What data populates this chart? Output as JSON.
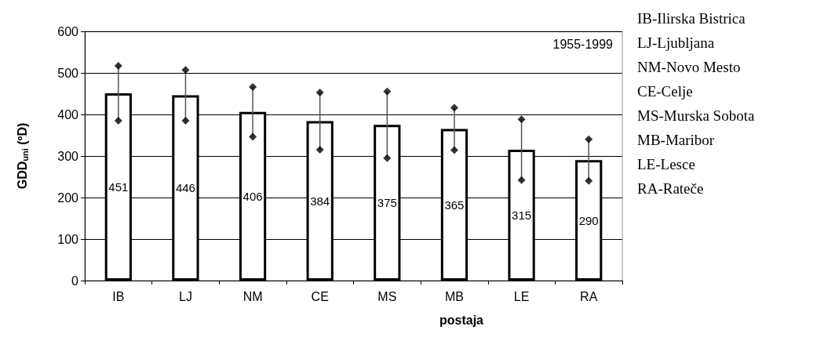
{
  "chart_data": {
    "type": "bar",
    "ylabel": "GDD$_{uni}$ (ºD)",
    "xlabel": "postaja",
    "categories": [
      "IB",
      "LJ",
      "NM",
      "CE",
      "MS",
      "MB",
      "LE",
      "RA"
    ],
    "series": [
      {
        "color": "#ffffff",
        "values": [
          451,
          446,
          406,
          384,
          375,
          365,
          315,
          290
        ],
        "value_labels": [
          "451",
          "446",
          "406",
          "384",
          "375",
          "365",
          "315",
          "290"
        ]
      },
      {
        "type": "scatter",
        "color": "#000000",
        "x": [
          "IB",
          "LJ",
          "NM",
          "CE",
          "MS",
          "MB",
          "LE",
          "RA"
        ],
        "values": [
          517,
          507,
          466,
          453,
          455,
          416,
          388,
          340
        ]
      },
      {
        "type": "scatter",
        "color": "#000000",
        "x": [
          "IB",
          "LJ",
          "NM",
          "CE",
          "MS",
          "MB",
          "LE",
          "RA"
        ],
        "values": [
          385,
          385,
          346,
          315,
          295,
          314,
          242,
          240
        ]
      }
    ],
    "marker": "diamond",
    "ylim": [
      0,
      600
    ],
    "yticks": [
      0,
      100,
      200,
      300,
      400,
      500,
      600
    ],
    "grid": "y",
    "annotations": [
      {
        "text": "1955-1999"
      },
      "IB-Ilirska Bistrica",
      "LJ-Ljubljana",
      "NM-Novo Mesto",
      "CE-Celje",
      "MS-Murska Sobota",
      "MB-Maribor",
      "LE-Lesce",
      "RA-Rateče"
    ]
  }
}
